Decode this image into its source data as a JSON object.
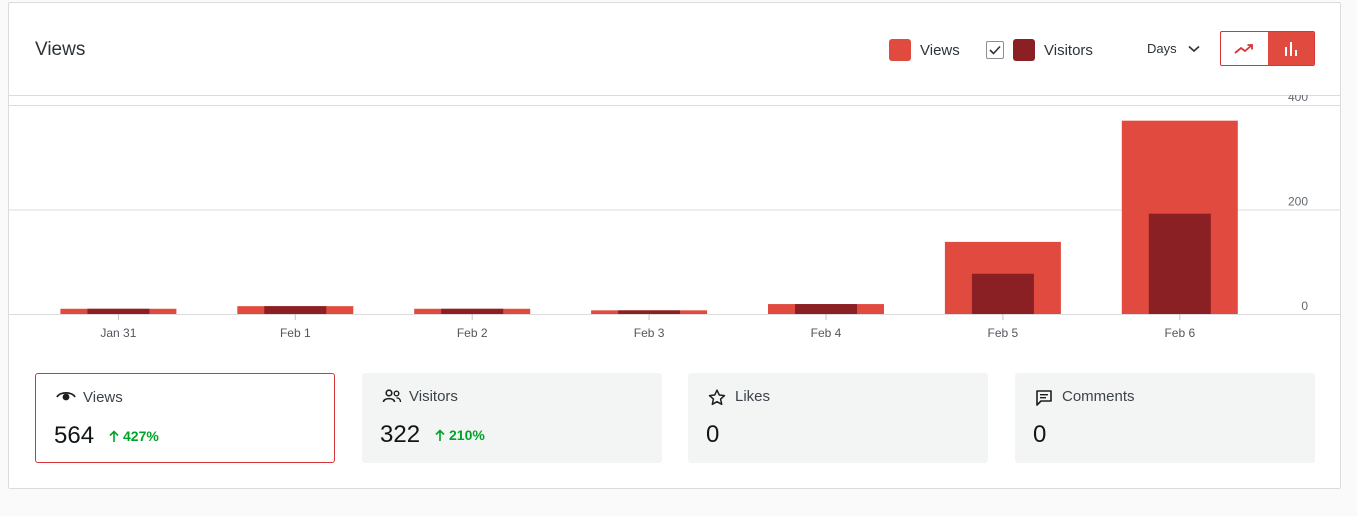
{
  "header": {
    "title": "Views",
    "legend": {
      "views_label": "Views",
      "visitors_label": "Visitors"
    },
    "period_label": "Days",
    "chart_type_options": [
      "line-chart-icon",
      "bar-chart-icon"
    ],
    "active_chart_type": "bar"
  },
  "colors": {
    "views": "#e14a3f",
    "visitors": "#8a2023",
    "accent": "#d63638",
    "positive": "#00a32a"
  },
  "chart_data": {
    "type": "bar",
    "categories": [
      "Jan 31",
      "Feb 1",
      "Feb 2",
      "Feb 3",
      "Feb 4",
      "Feb 5",
      "Feb 6"
    ],
    "series": [
      {
        "name": "Views",
        "values": [
          10,
          15,
          10,
          7,
          19,
          138,
          370
        ]
      },
      {
        "name": "Visitors",
        "values": [
          10,
          15,
          10,
          7,
          19,
          77,
          192
        ]
      }
    ],
    "yticks": [
      "0",
      "200",
      "400"
    ],
    "ylim": [
      0,
      400
    ],
    "grid": true,
    "legend": "top-right"
  },
  "stats": [
    {
      "label": "Views",
      "icon": "eye-icon",
      "value": "564",
      "change": "427%",
      "selected": true
    },
    {
      "label": "Visitors",
      "icon": "people-icon",
      "value": "322",
      "change": "210%",
      "selected": false
    },
    {
      "label": "Likes",
      "icon": "star-icon",
      "value": "0",
      "change": "",
      "selected": false
    },
    {
      "label": "Comments",
      "icon": "comment-icon",
      "value": "0",
      "change": "",
      "selected": false
    }
  ]
}
